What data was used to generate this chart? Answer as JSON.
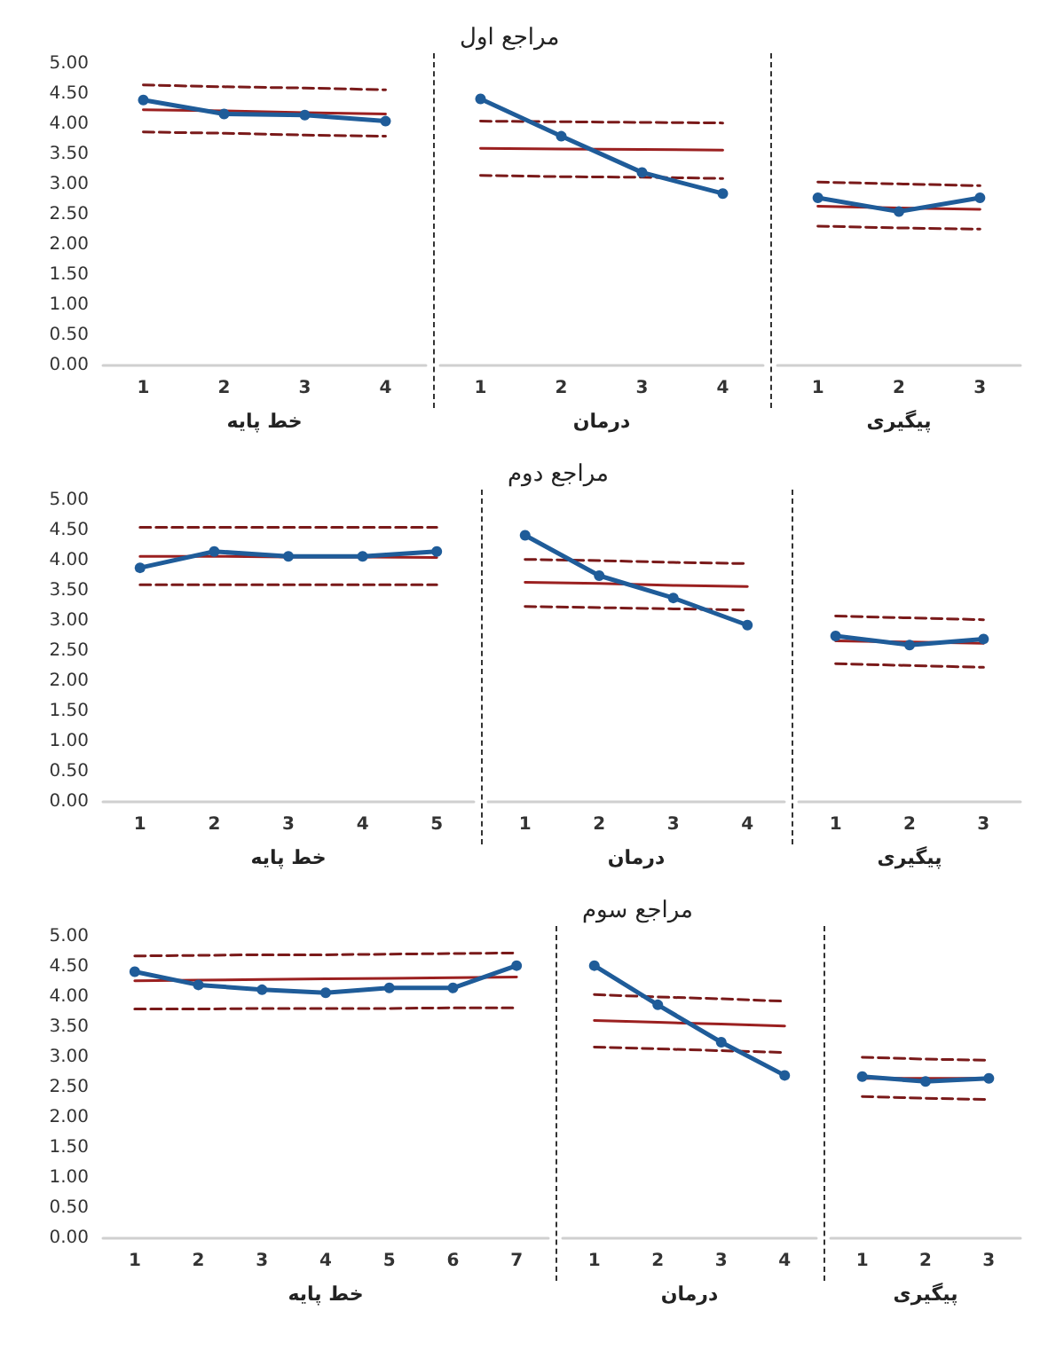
{
  "chart_data": [
    {
      "type": "line",
      "xlabel": "خط پایه",
      "categories": [
        "1",
        "2",
        "3",
        "4"
      ],
      "ylim": [
        0,
        5
      ],
      "yticks": [
        {
          "value": 0,
          "label": "0.00"
        },
        {
          "value": 0.5,
          "label": "0.50"
        },
        {
          "value": 1,
          "label": "1.00"
        },
        {
          "value": 1.5,
          "label": "1.50"
        },
        {
          "value": 2,
          "label": "2.00"
        },
        {
          "value": 2.5,
          "label": "2.50"
        },
        {
          "value": 3,
          "label": "3.00"
        },
        {
          "value": 3.5,
          "label": "3.50"
        },
        {
          "value": 4,
          "label": "4.00"
        },
        {
          "value": 4.5,
          "label": "4.50"
        },
        {
          "value": 5,
          "label": "5.00"
        }
      ],
      "grid": false,
      "series": [
        {
          "color": "#1f5c99",
          "marker": "circle",
          "line_style": "solid",
          "values": [
            4.4,
            4.17,
            4.15,
            4.05
          ]
        },
        {
          "color": "#9b2020",
          "marker": "none",
          "line_style": "solid",
          "values": [
            4.24,
            4.22,
            4.19,
            4.17
          ]
        },
        {
          "color": "#7a1a1a",
          "marker": "none",
          "line_style": "dashed",
          "values": [
            4.65,
            4.62,
            4.6,
            4.57
          ]
        },
        {
          "color": "#7a1a1a",
          "marker": "none",
          "line_style": "dashed",
          "values": [
            3.87,
            3.85,
            3.82,
            3.8
          ]
        }
      ]
    },
    {
      "type": "line",
      "title": "مراجع اول",
      "xlabel": "درمان",
      "categories": [
        "1",
        "2",
        "3",
        "4"
      ],
      "ylim": [
        0,
        5
      ],
      "tick_labels": "x",
      "grid": false,
      "series": [
        {
          "color": "#1f5c99",
          "marker": "circle",
          "line_style": "solid",
          "values": [
            4.42,
            3.8,
            3.2,
            2.85
          ]
        },
        {
          "color": "#9b2020",
          "marker": "none",
          "line_style": "solid",
          "values": [
            3.6,
            3.59,
            3.58,
            3.57
          ]
        },
        {
          "color": "#7a1a1a",
          "marker": "none",
          "line_style": "dashed",
          "values": [
            4.05,
            4.04,
            4.03,
            4.02
          ]
        },
        {
          "color": "#7a1a1a",
          "marker": "none",
          "line_style": "dashed",
          "values": [
            3.15,
            3.13,
            3.12,
            3.1
          ]
        }
      ]
    },
    {
      "type": "line",
      "xlabel": "پیگیری",
      "categories": [
        "1",
        "2",
        "3"
      ],
      "ylim": [
        0,
        5
      ],
      "tick_labels": "x",
      "grid": false,
      "series": [
        {
          "color": "#1f5c99",
          "marker": "circle",
          "line_style": "solid",
          "values": [
            2.78,
            2.55,
            2.78
          ]
        },
        {
          "color": "#9b2020",
          "marker": "none",
          "line_style": "solid",
          "values": [
            2.64,
            2.61,
            2.59
          ]
        },
        {
          "color": "#7a1a1a",
          "marker": "none",
          "line_style": "dashed",
          "values": [
            3.04,
            3.01,
            2.98
          ]
        },
        {
          "color": "#7a1a1a",
          "marker": "none",
          "line_style": "dashed",
          "values": [
            2.31,
            2.28,
            2.26
          ]
        }
      ]
    },
    {
      "type": "line",
      "xlabel": "خط پایه",
      "categories": [
        "1",
        "2",
        "3",
        "4",
        "5"
      ],
      "ylim": [
        0,
        5
      ],
      "yticks": [
        {
          "value": 0,
          "label": "0.00"
        },
        {
          "value": 0.5,
          "label": "0.50"
        },
        {
          "value": 1,
          "label": "1.00"
        },
        {
          "value": 1.5,
          "label": "1.50"
        },
        {
          "value": 2,
          "label": "2.00"
        },
        {
          "value": 2.5,
          "label": "2.50"
        },
        {
          "value": 3,
          "label": "3.00"
        },
        {
          "value": 3.5,
          "label": "3.50"
        },
        {
          "value": 4,
          "label": "4.00"
        },
        {
          "value": 4.5,
          "label": "4.50"
        },
        {
          "value": 5,
          "label": "5.00"
        }
      ],
      "grid": false,
      "series": [
        {
          "color": "#1f5c99",
          "marker": "circle",
          "line_style": "solid",
          "values": [
            3.88,
            4.15,
            4.07,
            4.07,
            4.15
          ]
        },
        {
          "color": "#9b2020",
          "marker": "none",
          "line_style": "solid",
          "values": [
            4.07,
            4.07,
            4.06,
            4.06,
            4.05
          ]
        },
        {
          "color": "#7a1a1a",
          "marker": "none",
          "line_style": "dashed",
          "values": [
            4.55,
            4.55,
            4.55,
            4.55,
            4.55
          ]
        },
        {
          "color": "#7a1a1a",
          "marker": "none",
          "line_style": "dashed",
          "values": [
            3.6,
            3.6,
            3.6,
            3.6,
            3.6
          ]
        }
      ]
    },
    {
      "type": "line",
      "title": "مراجع دوم",
      "xlabel": "درمان",
      "categories": [
        "1",
        "2",
        "3",
        "4"
      ],
      "ylim": [
        0,
        5
      ],
      "tick_labels": "x",
      "grid": false,
      "series": [
        {
          "color": "#1f5c99",
          "marker": "circle",
          "line_style": "solid",
          "values": [
            4.42,
            3.75,
            3.38,
            2.93
          ]
        },
        {
          "color": "#9b2020",
          "marker": "none",
          "line_style": "solid",
          "values": [
            3.64,
            3.62,
            3.59,
            3.57
          ]
        },
        {
          "color": "#7a1a1a",
          "marker": "none",
          "line_style": "dashed",
          "values": [
            4.02,
            4.0,
            3.97,
            3.95
          ]
        },
        {
          "color": "#7a1a1a",
          "marker": "none",
          "line_style": "dashed",
          "values": [
            3.24,
            3.22,
            3.2,
            3.18
          ]
        }
      ]
    },
    {
      "type": "line",
      "xlabel": "پیگیری",
      "categories": [
        "1",
        "2",
        "3"
      ],
      "ylim": [
        0,
        5
      ],
      "tick_labels": "x",
      "grid": false,
      "series": [
        {
          "color": "#1f5c99",
          "marker": "circle",
          "line_style": "solid",
          "values": [
            2.75,
            2.6,
            2.7
          ]
        },
        {
          "color": "#9b2020",
          "marker": "none",
          "line_style": "solid",
          "values": [
            2.67,
            2.65,
            2.63
          ]
        },
        {
          "color": "#7a1a1a",
          "marker": "none",
          "line_style": "dashed",
          "values": [
            3.08,
            3.05,
            3.02
          ]
        },
        {
          "color": "#7a1a1a",
          "marker": "none",
          "line_style": "dashed",
          "values": [
            2.29,
            2.26,
            2.23
          ]
        }
      ]
    },
    {
      "type": "line",
      "xlabel": "خط پایه",
      "categories": [
        "1",
        "2",
        "3",
        "4",
        "5",
        "6",
        "7"
      ],
      "ylim": [
        0,
        5
      ],
      "yticks": [
        {
          "value": 0,
          "label": "0.00"
        },
        {
          "value": 0.5,
          "label": "0.50"
        },
        {
          "value": 1,
          "label": "1.00"
        },
        {
          "value": 1.5,
          "label": "1.50"
        },
        {
          "value": 2,
          "label": "2.00"
        },
        {
          "value": 2.5,
          "label": "2.50"
        },
        {
          "value": 3,
          "label": "3.00"
        },
        {
          "value": 3.5,
          "label": "3.50"
        },
        {
          "value": 4,
          "label": "4.00"
        },
        {
          "value": 4.5,
          "label": "4.50"
        },
        {
          "value": 5,
          "label": "5.00"
        }
      ],
      "grid": false,
      "series": [
        {
          "color": "#1f5c99",
          "marker": "circle",
          "line_style": "solid",
          "values": [
            4.42,
            4.2,
            4.12,
            4.07,
            4.15,
            4.15,
            4.52
          ]
        },
        {
          "color": "#9b2020",
          "marker": "none",
          "line_style": "solid",
          "values": [
            4.27,
            4.28,
            4.29,
            4.3,
            4.31,
            4.32,
            4.33
          ]
        },
        {
          "color": "#7a1a1a",
          "marker": "none",
          "line_style": "dashed",
          "values": [
            4.68,
            4.69,
            4.7,
            4.7,
            4.71,
            4.72,
            4.73
          ]
        },
        {
          "color": "#7a1a1a",
          "marker": "none",
          "line_style": "dashed",
          "values": [
            3.8,
            3.8,
            3.81,
            3.81,
            3.81,
            3.82,
            3.82
          ]
        }
      ]
    },
    {
      "type": "line",
      "title": "مراجع سوم",
      "xlabel": "درمان",
      "categories": [
        "1",
        "2",
        "3",
        "4"
      ],
      "ylim": [
        0,
        5
      ],
      "tick_labels": "x",
      "grid": false,
      "series": [
        {
          "color": "#1f5c99",
          "marker": "circle",
          "line_style": "solid",
          "values": [
            4.52,
            3.87,
            3.25,
            2.7
          ]
        },
        {
          "color": "#9b2020",
          "marker": "none",
          "line_style": "solid",
          "values": [
            3.61,
            3.58,
            3.55,
            3.52
          ]
        },
        {
          "color": "#7a1a1a",
          "marker": "none",
          "line_style": "dashed",
          "values": [
            4.04,
            4.0,
            3.97,
            3.93
          ]
        },
        {
          "color": "#7a1a1a",
          "marker": "none",
          "line_style": "dashed",
          "values": [
            3.17,
            3.14,
            3.11,
            3.08
          ]
        }
      ]
    },
    {
      "type": "line",
      "xlabel": "پیگیری",
      "categories": [
        "1",
        "2",
        "3"
      ],
      "ylim": [
        0,
        5
      ],
      "tick_labels": "x",
      "grid": false,
      "series": [
        {
          "color": "#1f5c99",
          "marker": "circle",
          "line_style": "solid",
          "values": [
            2.68,
            2.6,
            2.65
          ]
        },
        {
          "color": "#9b2020",
          "marker": "none",
          "line_style": "solid",
          "values": [
            2.65,
            2.65,
            2.65
          ]
        },
        {
          "color": "#7a1a1a",
          "marker": "none",
          "line_style": "dashed",
          "values": [
            3.0,
            2.97,
            2.95
          ]
        },
        {
          "color": "#7a1a1a",
          "marker": "none",
          "line_style": "dashed",
          "values": [
            2.35,
            2.32,
            2.3
          ]
        }
      ]
    }
  ]
}
